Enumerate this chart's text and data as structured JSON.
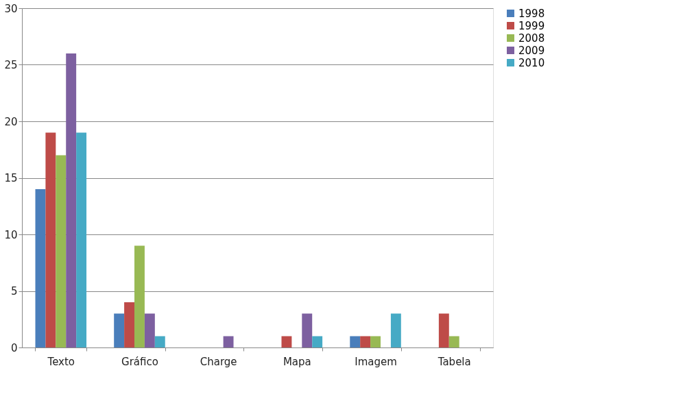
{
  "chart_data": {
    "type": "bar",
    "categories": [
      "Texto",
      "Gráfico",
      "Charge",
      "Mapa",
      "Imagem",
      "Tabela"
    ],
    "series": [
      {
        "name": "1998",
        "color": "#4a7ebb",
        "values": [
          14,
          3,
          0,
          0,
          1,
          0
        ]
      },
      {
        "name": "1999",
        "color": "#be4b48",
        "values": [
          19,
          4,
          0,
          1,
          1,
          3
        ]
      },
      {
        "name": "2008",
        "color": "#98b954",
        "values": [
          17,
          9,
          0,
          0,
          1,
          1
        ]
      },
      {
        "name": "2009",
        "color": "#7d60a0",
        "values": [
          26,
          3,
          1,
          3,
          0,
          0
        ]
      },
      {
        "name": "2010",
        "color": "#46aac5",
        "values": [
          19,
          1,
          0,
          1,
          3,
          0
        ]
      }
    ],
    "ylim": [
      0,
      30
    ],
    "yticks": [
      0,
      5,
      10,
      15,
      20,
      25,
      30
    ],
    "grid": "y",
    "legend": "right"
  }
}
